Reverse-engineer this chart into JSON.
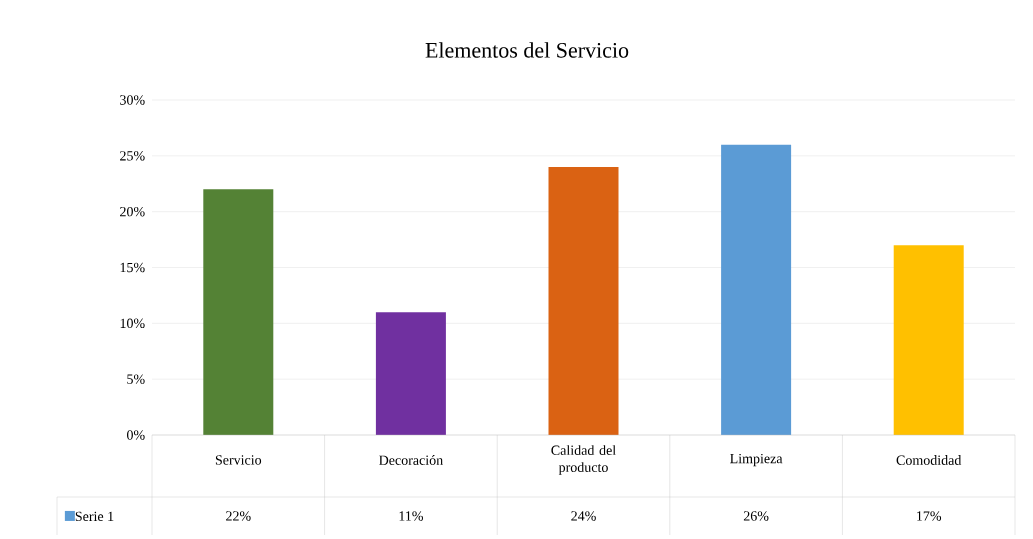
{
  "chart_data": {
    "type": "bar",
    "title": "Elementos del Servicio",
    "categories": [
      "Servicio",
      "Decoración",
      "Calidad del producto",
      "Limpieza",
      "Comodidad"
    ],
    "series": [
      {
        "name": "Serie 1",
        "color": "#5b9bd5",
        "colors": [
          "#548235",
          "#7030a0",
          "#da6213",
          "#5b9bd5",
          "#ffc000"
        ],
        "values": [
          22,
          11,
          24,
          26,
          17
        ],
        "value_labels": [
          "22%",
          "11%",
          "24%",
          "26%",
          "17%"
        ]
      }
    ],
    "ylim": [
      0,
      30
    ],
    "yticks": [
      {
        "value": 0,
        "label": "0%"
      },
      {
        "value": 5,
        "label": "5%"
      },
      {
        "value": 10,
        "label": "10%"
      },
      {
        "value": 15,
        "label": "15%"
      },
      {
        "value": 20,
        "label": "20%"
      },
      {
        "value": 25,
        "label": "25%"
      },
      {
        "value": 30,
        "label": "30%"
      }
    ],
    "grid": "y",
    "legend": "bottom left"
  }
}
